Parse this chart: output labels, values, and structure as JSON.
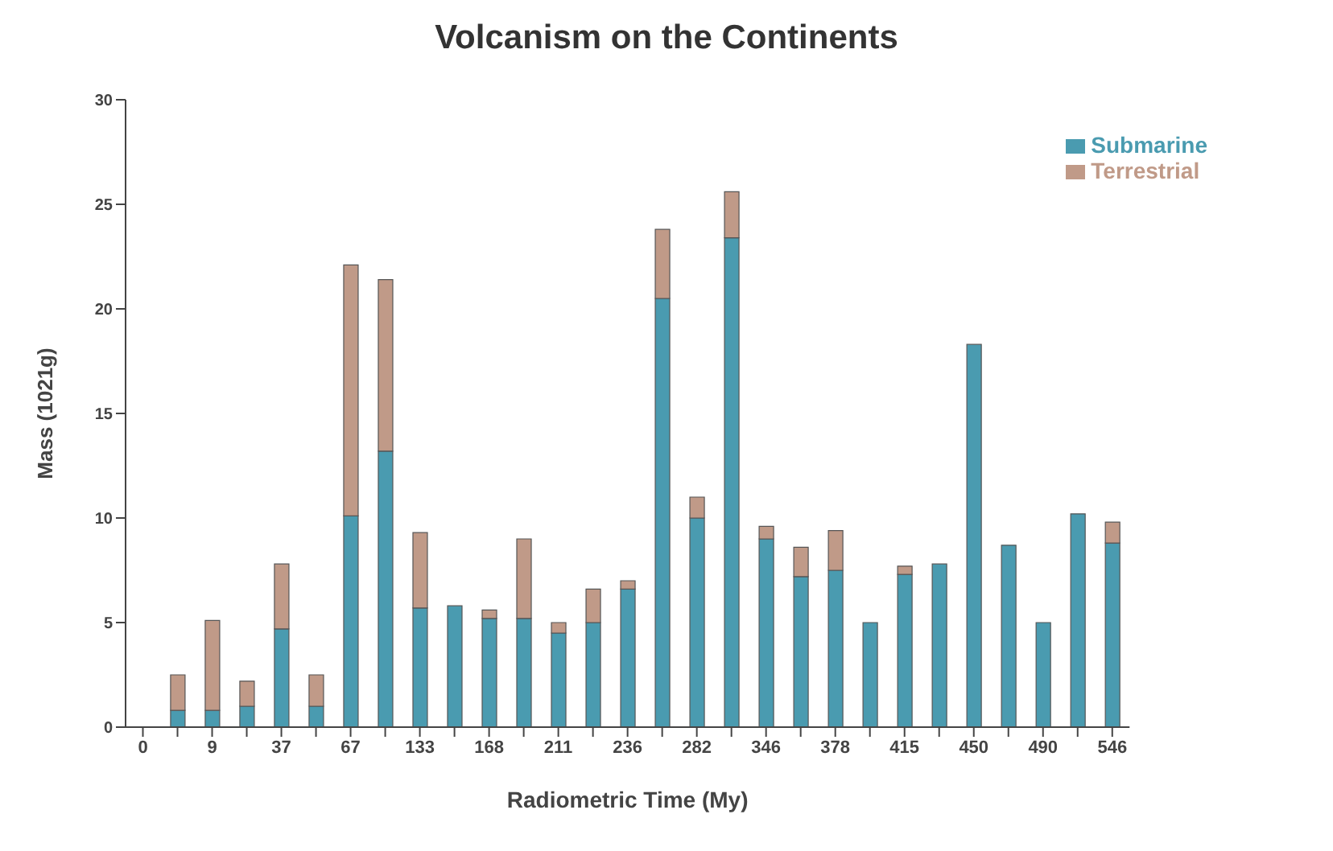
{
  "chart_data": {
    "type": "bar",
    "title": "Volcanism on the Continents",
    "xlabel": "Radiometric Time (My)",
    "ylabel": "Mass (1021g)",
    "categories": [
      "0",
      null,
      "9",
      null,
      "37",
      null,
      "67",
      null,
      "133",
      null,
      "168",
      null,
      "211",
      null,
      "236",
      null,
      "282",
      null,
      "346",
      null,
      "378",
      null,
      "415",
      null,
      "450",
      null,
      "490",
      null,
      "546"
    ],
    "stacked": true,
    "series": [
      {
        "name": "Submarine",
        "color": "#4a9bb0",
        "values": [
          null,
          0.8,
          0.8,
          1.0,
          4.7,
          1.0,
          10.1,
          13.2,
          5.7,
          5.8,
          5.2,
          5.2,
          4.5,
          5.0,
          6.6,
          20.5,
          10.0,
          23.4,
          9.0,
          7.2,
          7.5,
          5.0,
          7.3,
          7.8,
          18.3,
          8.7,
          5.0,
          10.2,
          8.8
        ]
      },
      {
        "name": "Terrestrial",
        "color": "#c09a88",
        "values": [
          null,
          1.7,
          4.3,
          1.2,
          3.1,
          1.5,
          12.0,
          8.2,
          3.6,
          null,
          0.4,
          3.8,
          0.5,
          1.6,
          0.4,
          3.3,
          1.0,
          2.2,
          0.6,
          1.4,
          1.9,
          null,
          0.4,
          null,
          null,
          null,
          null,
          null,
          1.0
        ]
      }
    ],
    "ylim": [
      0,
      30
    ],
    "yticks": [
      0,
      5,
      10,
      15,
      20,
      25,
      30
    ],
    "grid": false,
    "legend": "top right"
  }
}
